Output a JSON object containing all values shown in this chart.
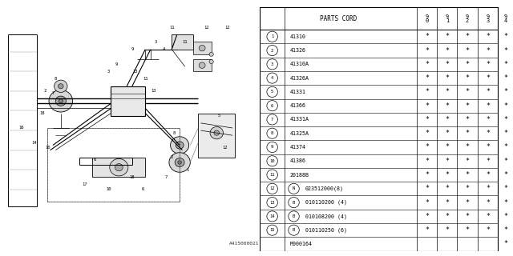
{
  "bg_color": "#ffffff",
  "rows": [
    {
      "num": "1",
      "code": "41310",
      "vals": [
        "*",
        "*",
        "*",
        "*",
        "*"
      ],
      "prefix": ""
    },
    {
      "num": "2",
      "code": "41326",
      "vals": [
        "*",
        "*",
        "*",
        "*",
        "*"
      ],
      "prefix": ""
    },
    {
      "num": "3",
      "code": "41310A",
      "vals": [
        "*",
        "*",
        "*",
        "*",
        "*"
      ],
      "prefix": ""
    },
    {
      "num": "4",
      "code": "41326A",
      "vals": [
        "*",
        "*",
        "*",
        "*",
        "*"
      ],
      "prefix": ""
    },
    {
      "num": "5",
      "code": "41331",
      "vals": [
        "*",
        "*",
        "*",
        "*",
        "*"
      ],
      "prefix": ""
    },
    {
      "num": "6",
      "code": "41366",
      "vals": [
        "*",
        "*",
        "*",
        "*",
        "*"
      ],
      "prefix": ""
    },
    {
      "num": "7",
      "code": "41331A",
      "vals": [
        "*",
        "*",
        "*",
        "*",
        "*"
      ],
      "prefix": ""
    },
    {
      "num": "8",
      "code": "41325A",
      "vals": [
        "*",
        "*",
        "*",
        "*",
        "*"
      ],
      "prefix": ""
    },
    {
      "num": "9",
      "code": "41374",
      "vals": [
        "*",
        "*",
        "*",
        "*",
        "*"
      ],
      "prefix": ""
    },
    {
      "num": "10",
      "code": "41386",
      "vals": [
        "*",
        "*",
        "*",
        "*",
        "*"
      ],
      "prefix": ""
    },
    {
      "num": "11",
      "code": "20188B",
      "vals": [
        "*",
        "*",
        "*",
        "*",
        "*"
      ],
      "prefix": ""
    },
    {
      "num": "12",
      "code": "023512000(8)",
      "vals": [
        "*",
        "*",
        "*",
        "*",
        "*"
      ],
      "prefix": "N"
    },
    {
      "num": "13",
      "code": "010110200 (4)",
      "vals": [
        "*",
        "*",
        "*",
        "*",
        "*"
      ],
      "prefix": "B"
    },
    {
      "num": "14",
      "code": "010108200 (4)",
      "vals": [
        "*",
        "*",
        "*",
        "*",
        "*"
      ],
      "prefix": "B"
    },
    {
      "num": "15",
      "code": "010110250 (6)",
      "vals": [
        "*",
        "*",
        "*",
        "*",
        "*"
      ],
      "prefix": "B"
    },
    {
      "num": "",
      "code": "M000164",
      "vals": [
        "",
        "",
        "",
        "",
        "*"
      ],
      "prefix": ""
    }
  ],
  "year_cols": [
    "9\n0",
    "9\n1",
    "9\n2",
    "9\n3",
    "9\n4"
  ],
  "watermark": "A415000021",
  "lc": "#000000"
}
